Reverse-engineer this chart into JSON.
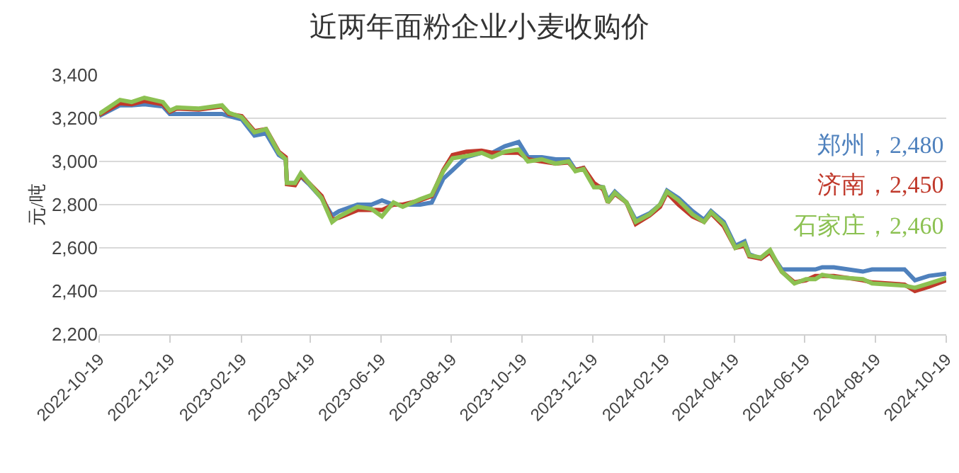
{
  "chart_data": {
    "type": "line",
    "title": "近两年面粉企业小麦收购价",
    "ylabel": "元/吨",
    "x": [
      "2022-10-19",
      "2022-11-06",
      "2022-11-16",
      "2022-11-27",
      "2022-12-13",
      "2022-12-19",
      "2022-12-25",
      "2023-01-13",
      "2023-02-02",
      "2023-02-08",
      "2023-02-19",
      "2023-03-02",
      "2023-03-12",
      "2023-03-23",
      "2023-03-29",
      "2023-03-30",
      "2023-04-06",
      "2023-04-11",
      "2023-04-18",
      "2023-04-29",
      "2023-05-08",
      "2023-05-14",
      "2023-05-30",
      "2023-06-11",
      "2023-06-20",
      "2023-06-30",
      "2023-07-08",
      "2023-07-23",
      "2023-08-02",
      "2023-08-12",
      "2023-08-20",
      "2023-09-01",
      "2023-09-14",
      "2023-09-23",
      "2023-10-04",
      "2023-10-16",
      "2023-10-24",
      "2023-11-05",
      "2023-11-17",
      "2023-11-28",
      "2023-12-04",
      "2023-12-11",
      "2023-12-20",
      "2023-12-28",
      "2024-01-01",
      "2024-01-07",
      "2024-01-17",
      "2024-01-25",
      "2024-02-06",
      "2024-02-15",
      "2024-02-21",
      "2024-03-02",
      "2024-03-14",
      "2024-03-24",
      "2024-03-30",
      "2024-04-10",
      "2024-04-20",
      "2024-04-28",
      "2024-05-02",
      "2024-05-12",
      "2024-05-20",
      "2024-05-30",
      "2024-06-10",
      "2024-06-20",
      "2024-06-28",
      "2024-07-04",
      "2024-07-14",
      "2024-08-08",
      "2024-08-16",
      "2024-09-13",
      "2024-09-22",
      "2024-10-04",
      "2024-10-19"
    ],
    "series": [
      {
        "color": "#4f81bd",
        "values": [
          3210,
          3260,
          3260,
          3265,
          3255,
          3220,
          3220,
          3220,
          3220,
          3210,
          3195,
          3120,
          3130,
          3030,
          3010,
          2900,
          2900,
          2930,
          2895,
          2830,
          2750,
          2770,
          2800,
          2800,
          2820,
          2800,
          2800,
          2800,
          2810,
          2920,
          2960,
          3020,
          3040,
          3040,
          3070,
          3090,
          3020,
          3020,
          3010,
          3010,
          2960,
          2970,
          2890,
          2880,
          2820,
          2860,
          2810,
          2730,
          2760,
          2800,
          2865,
          2830,
          2770,
          2730,
          2770,
          2720,
          2610,
          2630,
          2570,
          2550,
          2580,
          2500,
          2500,
          2500,
          2500,
          2510,
          2510,
          2490,
          2500,
          2500,
          2450,
          2470,
          2480
        ]
      },
      {
        "color": "#c0392b",
        "values": [
          3215,
          3270,
          3265,
          3280,
          3265,
          3230,
          3245,
          3240,
          3255,
          3220,
          3210,
          3140,
          3150,
          3045,
          3020,
          2895,
          2890,
          2935,
          2900,
          2840,
          2730,
          2740,
          2775,
          2775,
          2775,
          2800,
          2800,
          2820,
          2840,
          2960,
          3030,
          3045,
          3050,
          3040,
          3040,
          3040,
          3010,
          3000,
          2990,
          2995,
          2960,
          2970,
          2900,
          2870,
          2810,
          2850,
          2810,
          2710,
          2750,
          2790,
          2855,
          2800,
          2745,
          2720,
          2760,
          2700,
          2600,
          2610,
          2560,
          2550,
          2580,
          2490,
          2440,
          2450,
          2470,
          2470,
          2470,
          2450,
          2440,
          2430,
          2400,
          2420,
          2450
        ]
      },
      {
        "color": "#8cc152",
        "values": [
          3220,
          3285,
          3275,
          3295,
          3275,
          3235,
          3250,
          3245,
          3260,
          3225,
          3205,
          3135,
          3150,
          3040,
          3010,
          2900,
          2900,
          2945,
          2900,
          2830,
          2720,
          2745,
          2790,
          2780,
          2745,
          2810,
          2790,
          2825,
          2845,
          2955,
          3015,
          3025,
          3040,
          3020,
          3045,
          3055,
          3000,
          3010,
          2990,
          3000,
          2955,
          2965,
          2880,
          2880,
          2810,
          2855,
          2810,
          2720,
          2755,
          2800,
          2860,
          2820,
          2755,
          2720,
          2765,
          2710,
          2600,
          2620,
          2565,
          2555,
          2590,
          2490,
          2435,
          2455,
          2455,
          2475,
          2465,
          2455,
          2435,
          2425,
          2415,
          2435,
          2460
        ]
      }
    ],
    "annotations": [
      "郑州，2,480",
      "济南，2,450",
      "石家庄，2,460"
    ],
    "xlim": [
      "2022-10-19",
      "2024-10-19"
    ],
    "xticks": [
      "2022-10-19",
      "2022-12-19",
      "2023-02-19",
      "2023-04-19",
      "2023-06-19",
      "2023-08-19",
      "2023-10-19",
      "2023-12-19",
      "2024-02-19",
      "2024-04-19",
      "2024-06-19",
      "2024-08-19",
      "2024-10-19"
    ],
    "ylim": [
      2200,
      3400
    ],
    "yticks": [
      {
        "value": 2200,
        "label": "2,200"
      },
      {
        "value": 2400,
        "label": "2,400"
      },
      {
        "value": 2600,
        "label": "2,600"
      },
      {
        "value": 2800,
        "label": "2,800"
      },
      {
        "value": 3000,
        "label": "3,000"
      },
      {
        "value": 3200,
        "label": "3,200"
      },
      {
        "value": 3400,
        "label": "3,400"
      }
    ],
    "grid": "y",
    "marker": "none",
    "line_style": "solid"
  }
}
